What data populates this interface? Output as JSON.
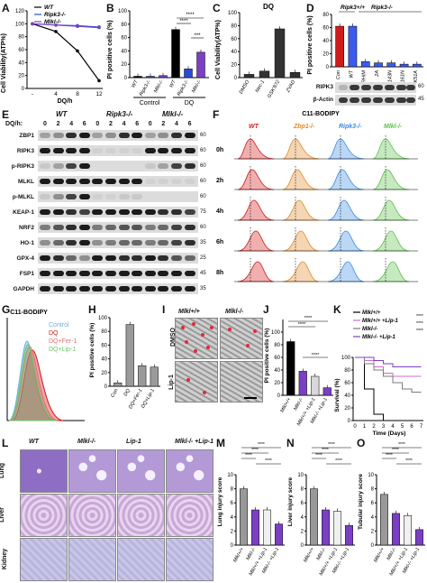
{
  "panel_labels": [
    "A",
    "B",
    "C",
    "D",
    "E",
    "F",
    "G",
    "H",
    "I",
    "J",
    "K",
    "L",
    "M",
    "N",
    "O"
  ],
  "panelA": {
    "legend": [
      "WT",
      "Ripk3-/-",
      "Mlkl-/-"
    ],
    "ylabel": "Cell Viability(ATP%)",
    "xlabel": "DQ/h",
    "yticks": [
      "0",
      "20",
      "40",
      "60",
      "80",
      "100",
      "120"
    ],
    "xticks": [
      "-",
      "4",
      "8",
      "12"
    ]
  },
  "panelB": {
    "ylabel": "PI positive cells (%)",
    "yticks": [
      "0",
      "20",
      "40",
      "60",
      "80",
      "100"
    ],
    "groups": [
      "Control",
      "DQ"
    ],
    "categories": [
      "WT",
      "Ripk3-/-",
      "Mlkl-/-",
      "WT",
      "Ripk3-/-",
      "Mlkl-/-"
    ],
    "sig": [
      "****",
      "****",
      "***"
    ]
  },
  "panelC": {
    "title": "DQ",
    "ylabel": "Cell Viability(ATP%)",
    "yticks": [
      "0",
      "20",
      "40",
      "60",
      "80",
      "100"
    ],
    "categories": [
      "DMSO",
      "Nec-1",
      "GSK'872",
      "ZVAD"
    ]
  },
  "panelD": {
    "header_left": "Ripk3+/+",
    "header_right": "Ripk3-/-",
    "ylabel": "PI positive cells (%)",
    "yticks": [
      "0",
      "20",
      "40",
      "60",
      "80"
    ],
    "categories": [
      "Con",
      "WT",
      "RHIM",
      "2A",
      "D143N",
      "D161N",
      "K51A"
    ],
    "blots": [
      "RIPK3",
      "β-Actin"
    ],
    "mw": [
      "60",
      "45"
    ]
  },
  "panelE": {
    "header": [
      "WT",
      "Ripk3-/-",
      "Mlkl-/-"
    ],
    "time_label": "DQ/h:",
    "times": [
      "0",
      "2",
      "4",
      "6",
      "0",
      "2",
      "4",
      "6",
      "0",
      "2",
      "4",
      "6"
    ],
    "rows": [
      "ZBP1",
      "RIPK3",
      "p-RIPK3",
      "MLKL",
      "p-MLKL",
      "KEAP-1",
      "NRF2",
      "HO-1",
      "GPX-4",
      "FSP1",
      "GAPDH"
    ],
    "mw": [
      "60",
      "60",
      "60",
      "60",
      "60",
      "75",
      "60",
      "35",
      "25",
      "45",
      "35"
    ]
  },
  "panelF": {
    "title": "C11-BODIPY",
    "legend": [
      "WT",
      "Zbp1-/-",
      "Ripk3-/-",
      "Mlkl-/-"
    ],
    "times": [
      "0h",
      "2h",
      "4h",
      "6h",
      "8h"
    ]
  },
  "panelG": {
    "title": "C11-BODIPY",
    "legend": [
      "Control",
      "DQ",
      "DQ+Fer-1",
      "DQ+Lip-1"
    ]
  },
  "panelH": {
    "ylabel": "PI positive cells (%)",
    "yticks": [
      "0",
      "20",
      "40",
      "60",
      "80",
      "100"
    ],
    "categories": [
      "Con",
      "DQ",
      "DQ+Fer-1",
      "DQ+Lip-1"
    ]
  },
  "panelI": {
    "cols": [
      "Mlkl+/+",
      "Mlkl-/-"
    ],
    "rows": [
      "DMSO",
      "Lip-1"
    ]
  },
  "panelJ": {
    "ylabel": "PI positive cells (%)",
    "yticks": [
      "0",
      "20",
      "40",
      "60",
      "80",
      "100"
    ],
    "categories": [
      "Mlkl+/+",
      "Mlkl-/-",
      "Mlkl+/+ +Lip-1",
      "Mlkl-/- +Lip-1"
    ],
    "sig": [
      "****",
      "****",
      "****"
    ]
  },
  "panelK": {
    "legend": [
      "Mlkl+/+",
      "Mlkl+/+ +Lip-1",
      "Mlkl-/-",
      "Mlkl-/- +Lip-1"
    ],
    "ylabel": "Survival (%)",
    "xlabel": "Time (Days)",
    "yticks": [
      "0",
      "20",
      "40",
      "60",
      "80",
      "100"
    ],
    "xticks": [
      "0",
      "1",
      "2",
      "3",
      "4",
      "5",
      "6",
      "7"
    ],
    "sig": [
      "****",
      "****",
      "****"
    ]
  },
  "panelL": {
    "cols": [
      "WT",
      "Mlkl-/-",
      "Lip-1",
      "Mlkl-/- +Lip-1"
    ],
    "rows": [
      "Lung",
      "Liver",
      "Kidney"
    ]
  },
  "panelM": {
    "ylabel": "Lung injury score",
    "yticks": [
      "0",
      "2",
      "4",
      "6",
      "8",
      "10"
    ],
    "categories": [
      "Mlkl+/+",
      "Mlkl-/-",
      "Mlkl+/+ +Lip-1",
      "Mlkl-/- +Lip-1"
    ],
    "sig": [
      "****",
      "****",
      "****",
      "****"
    ]
  },
  "panelN": {
    "ylabel": "Liver injury score",
    "yticks": [
      "0",
      "2",
      "4",
      "6",
      "8",
      "10"
    ],
    "categories": [
      "Mlkl+/+",
      "Mlkl-/-",
      "Mlkl+/+ +Lip-1",
      "Mlkl-/- +Lip-1"
    ],
    "sig": [
      "****",
      "****",
      "****",
      "****"
    ]
  },
  "panelO": {
    "ylabel": "Tubular injury score",
    "yticks": [
      "0",
      "2",
      "4",
      "6",
      "8",
      "10"
    ],
    "categories": [
      "Mlkl+/+",
      "Mlkl-/-",
      "Mlkl+/+ +Lip-1",
      "Mlkl-/- +Lip-1"
    ],
    "sig": [
      "****",
      "****",
      "****",
      "****"
    ]
  },
  "chart_data": [
    {
      "id": "A",
      "type": "line",
      "x": [
        "-",
        "4",
        "8",
        "12"
      ],
      "ylim": [
        0,
        120
      ],
      "series": [
        {
          "name": "WT",
          "values": [
            100,
            88,
            58,
            12
          ],
          "color": "#000000"
        },
        {
          "name": "Ripk3-/-",
          "values": [
            100,
            98,
            97,
            95
          ],
          "color": "#2b4bd6"
        },
        {
          "name": "Mlkl-/-",
          "values": [
            100,
            98,
            96,
            94
          ],
          "color": "#7b3fc4"
        }
      ]
    },
    {
      "id": "B",
      "type": "bar",
      "ylim": [
        0,
        100
      ],
      "values": [
        2,
        2,
        3,
        72,
        13,
        38
      ],
      "colors": [
        "#000000",
        "#2b4bd6",
        "#7b3fc4",
        "#000000",
        "#2b4bd6",
        "#7b3fc4"
      ]
    },
    {
      "id": "C",
      "type": "bar",
      "ylim": [
        0,
        100
      ],
      "values": [
        5,
        10,
        75,
        8
      ],
      "colors": [
        "#333333",
        "#333333",
        "#333333",
        "#333333"
      ]
    },
    {
      "id": "D",
      "type": "bar",
      "ylim": [
        0,
        80
      ],
      "values": [
        62,
        62,
        8,
        6,
        6,
        4,
        4
      ],
      "colors": [
        "#d11b1b",
        "#3b5bf0",
        "#3b5bf0",
        "#3b5bf0",
        "#3b5bf0",
        "#3b5bf0",
        "#3b5bf0"
      ]
    },
    {
      "id": "H",
      "type": "bar",
      "ylim": [
        0,
        100
      ],
      "values": [
        5,
        90,
        30,
        28
      ],
      "colors": [
        "#9a9a9a",
        "#9a9a9a",
        "#9a9a9a",
        "#9a9a9a"
      ]
    },
    {
      "id": "J",
      "type": "bar",
      "ylim": [
        0,
        100
      ],
      "values": [
        85,
        38,
        30,
        12
      ],
      "colors": [
        "#000000",
        "#7b3fc4",
        "#d8d8d8",
        "#7b3fc4"
      ]
    },
    {
      "id": "K",
      "type": "line",
      "x": [
        0,
        1,
        2,
        3,
        4,
        5,
        6,
        7
      ],
      "ylim": [
        0,
        100
      ],
      "series": [
        {
          "name": "Mlkl+/+",
          "values": [
            100,
            50,
            10,
            0,
            0,
            0,
            0,
            0
          ],
          "color": "#000000"
        },
        {
          "name": "Mlkl+/+ +Lip-1",
          "values": [
            100,
            95,
            85,
            75,
            70,
            70,
            70,
            70
          ],
          "color": "#d06ad0"
        },
        {
          "name": "Mlkl-/-",
          "values": [
            100,
            90,
            80,
            70,
            60,
            50,
            45,
            45
          ],
          "color": "#7b7b7b"
        },
        {
          "name": "Mlkl-/- +Lip-1",
          "values": [
            100,
            100,
            95,
            90,
            85,
            85,
            85,
            85
          ],
          "color": "#7b3fc4"
        }
      ]
    },
    {
      "id": "M",
      "type": "bar",
      "ylim": [
        0,
        10
      ],
      "values": [
        8,
        5,
        5,
        3
      ],
      "colors": [
        "#999999",
        "#7b3fc4",
        "#f0f0f0",
        "#7b3fc4"
      ]
    },
    {
      "id": "N",
      "type": "bar",
      "ylim": [
        0,
        10
      ],
      "values": [
        8,
        5,
        4.8,
        2.8
      ],
      "colors": [
        "#999999",
        "#7b3fc4",
        "#f0f0f0",
        "#7b3fc4"
      ]
    },
    {
      "id": "O",
      "type": "bar",
      "ylim": [
        0,
        10
      ],
      "values": [
        7.2,
        4.5,
        4.2,
        2.2
      ],
      "colors": [
        "#999999",
        "#7b3fc4",
        "#f0f0f0",
        "#7b3fc4"
      ]
    }
  ]
}
